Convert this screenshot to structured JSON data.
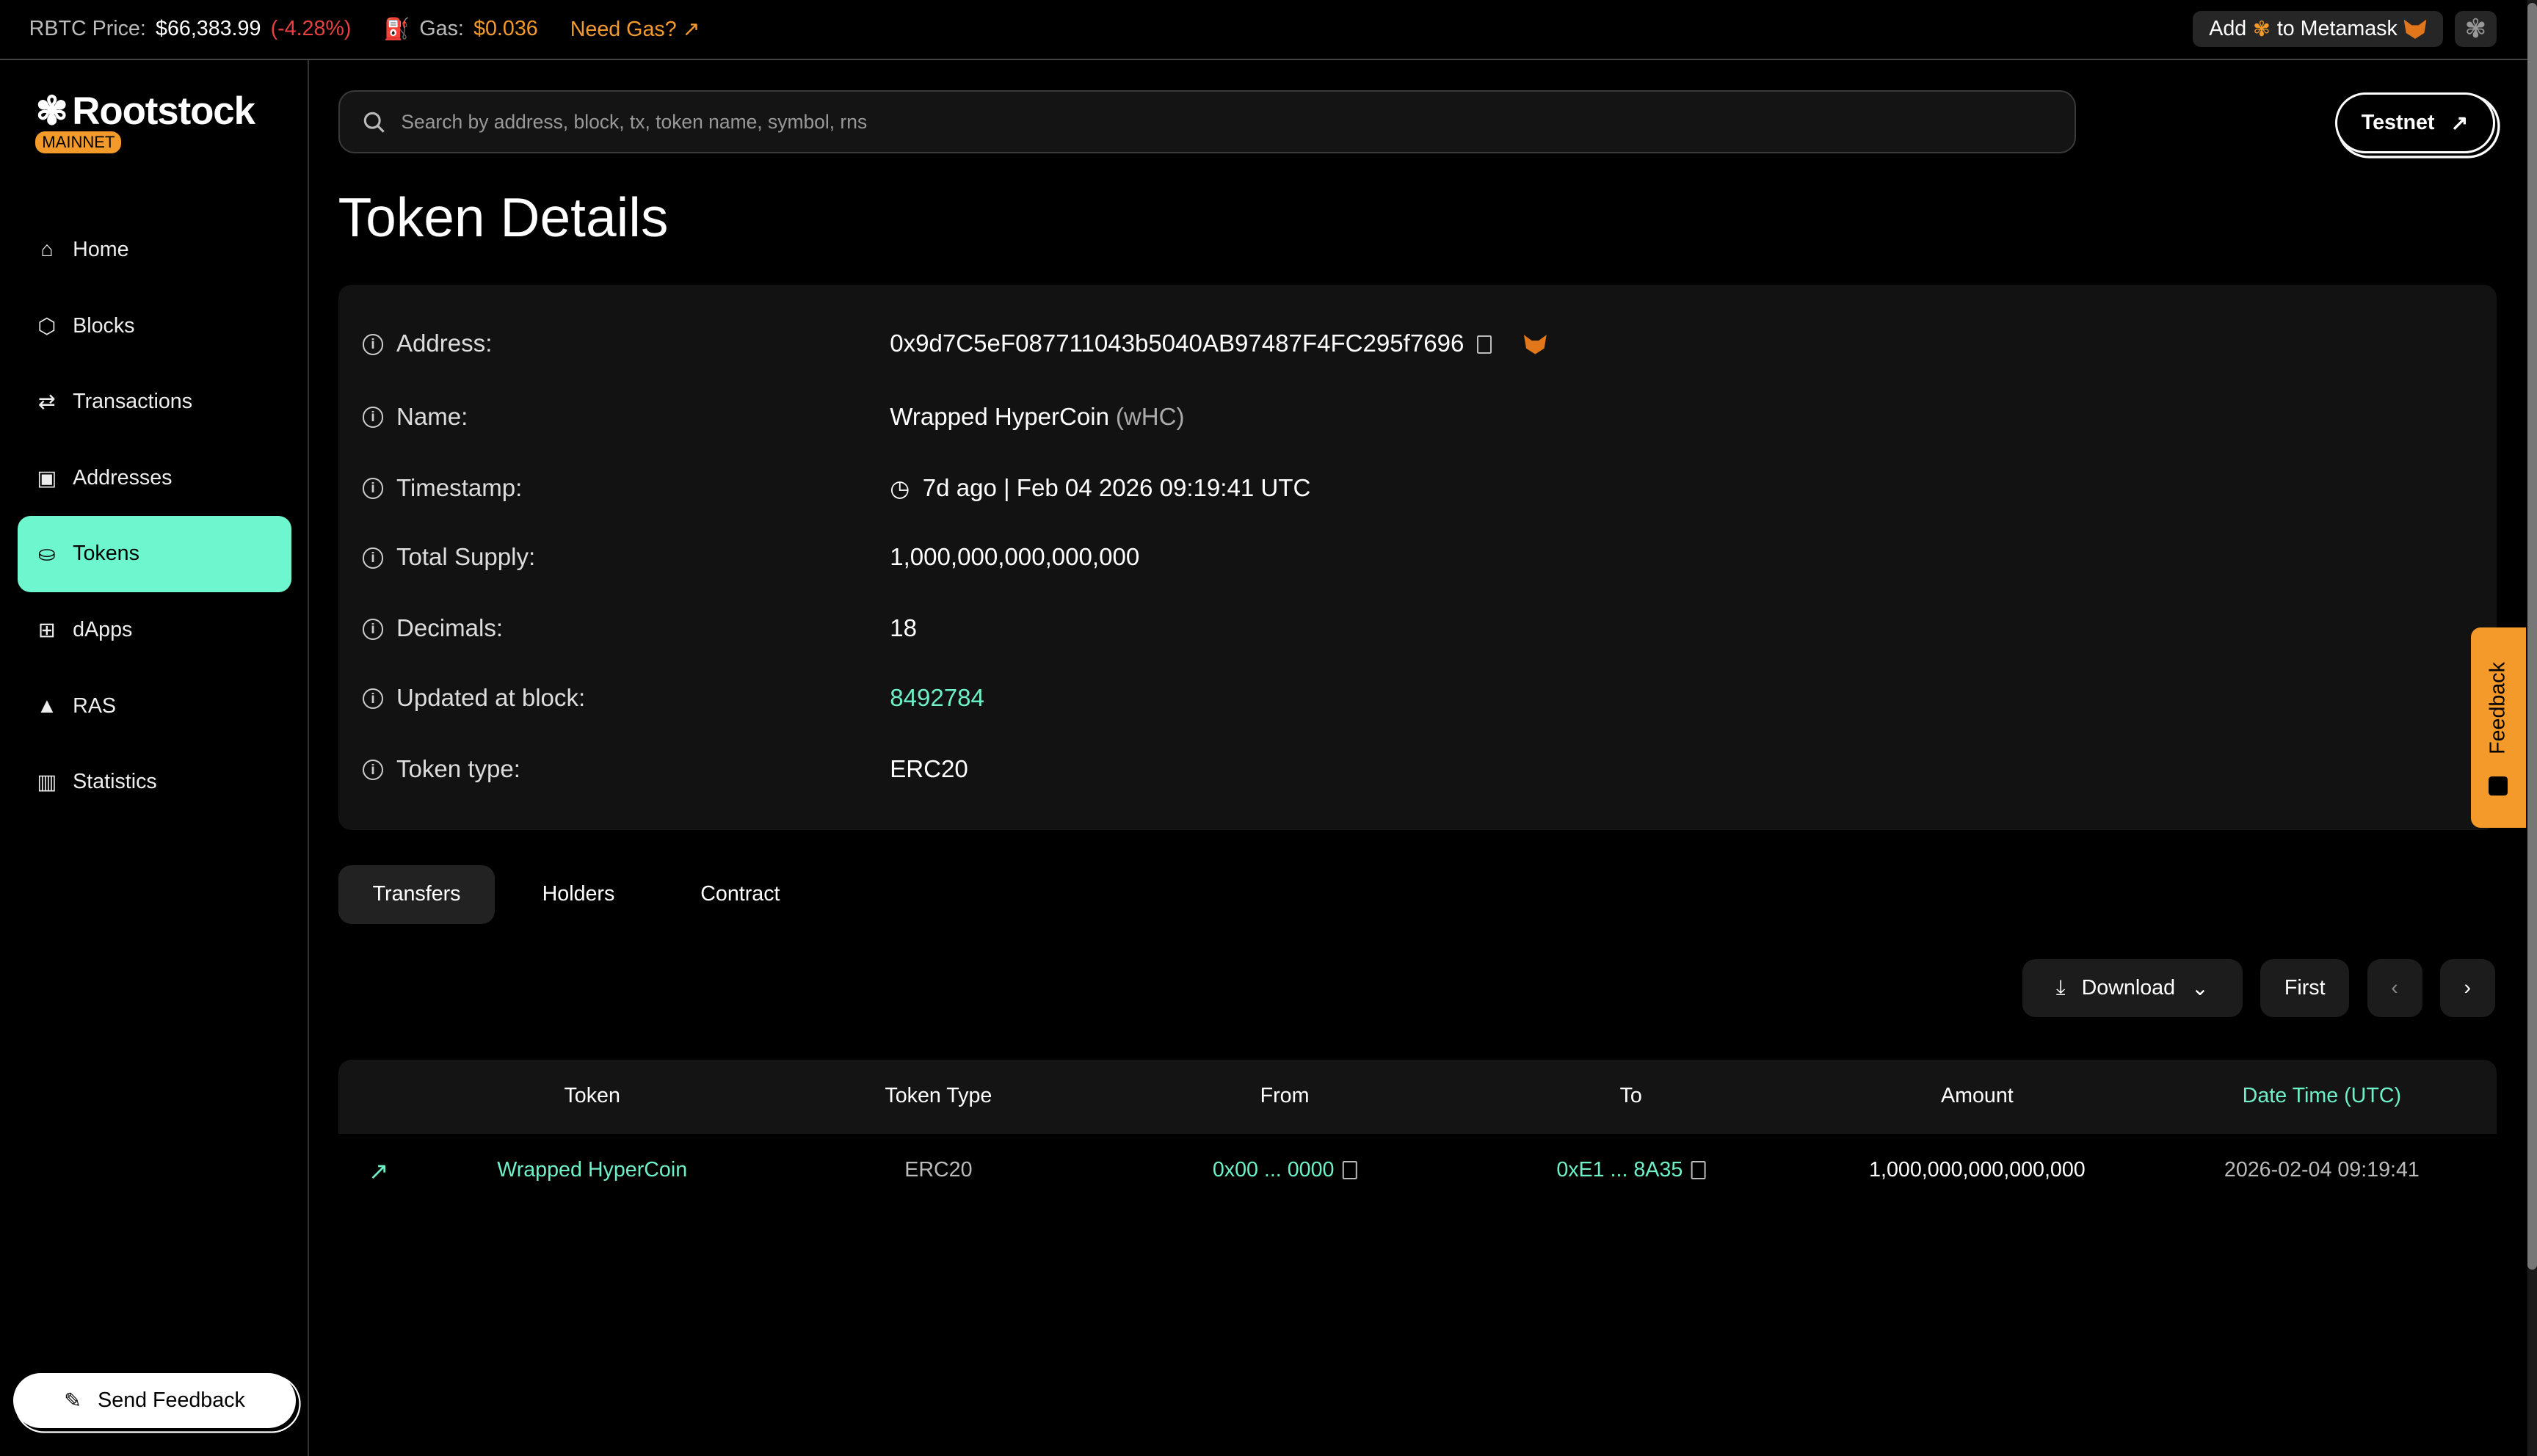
{
  "topbar": {
    "price_label": "RBTC Price:",
    "price": "$66,383.99",
    "change": "(-4.28%)",
    "gas_label": "Gas:",
    "gas": "$0.036",
    "need_gas": "Need Gas?",
    "metamask_add": "Add",
    "metamask_to": "to Metamask"
  },
  "brand": {
    "name": "Rootstock",
    "network": "MAINNET"
  },
  "sidebar": {
    "items": [
      {
        "label": "Home",
        "icon": "home-icon"
      },
      {
        "label": "Blocks",
        "icon": "cube-icon"
      },
      {
        "label": "Transactions",
        "icon": "arrows-icon"
      },
      {
        "label": "Addresses",
        "icon": "contact-icon"
      },
      {
        "label": "Tokens",
        "icon": "coins-icon",
        "active": true
      },
      {
        "label": "dApps",
        "icon": "grid-icon"
      },
      {
        "label": "RAS",
        "icon": "triangle-icon"
      },
      {
        "label": "Statistics",
        "icon": "bar-chart-icon"
      }
    ],
    "send_feedback": "Send Feedback"
  },
  "search": {
    "placeholder": "Search by address, block, tx, token name, symbol, rns"
  },
  "testnet": "Testnet",
  "page_title": "Token Details",
  "details": {
    "address": {
      "label": "Address:",
      "value": "0x9d7C5eF087711043b5040AB97487F4FC295f7696"
    },
    "name": {
      "label": "Name:",
      "value": "Wrapped HyperCoin",
      "symbol": "(wHC)"
    },
    "timestamp": {
      "label": "Timestamp:",
      "value": "7d ago | Feb 04 2026 09:19:41 UTC"
    },
    "total_supply": {
      "label": "Total Supply:",
      "value": "1,000,000,000,000,000"
    },
    "decimals": {
      "label": "Decimals:",
      "value": "18"
    },
    "updated_block": {
      "label": "Updated at block:",
      "value": "8492784"
    },
    "token_type": {
      "label": "Token type:",
      "value": "ERC20"
    }
  },
  "tabs": [
    "Transfers",
    "Holders",
    "Contract"
  ],
  "toolbar": {
    "download": "Download",
    "first": "First"
  },
  "table": {
    "headers": [
      "Token",
      "Token Type",
      "From",
      "To",
      "Amount",
      "Date Time (UTC)"
    ],
    "rows": [
      {
        "token": "Wrapped HyperCoin",
        "type": "ERC20",
        "from": "0x00 ... 0000",
        "to": "0xE1 ... 8A35",
        "amount": "1,000,000,000,000,000",
        "datetime": "2026-02-04 09:19:41"
      }
    ]
  },
  "feedback_tab": "Feedback",
  "colors": {
    "accent": "#6ef7cf",
    "orange": "#f39a2b",
    "negative": "#e84040"
  }
}
